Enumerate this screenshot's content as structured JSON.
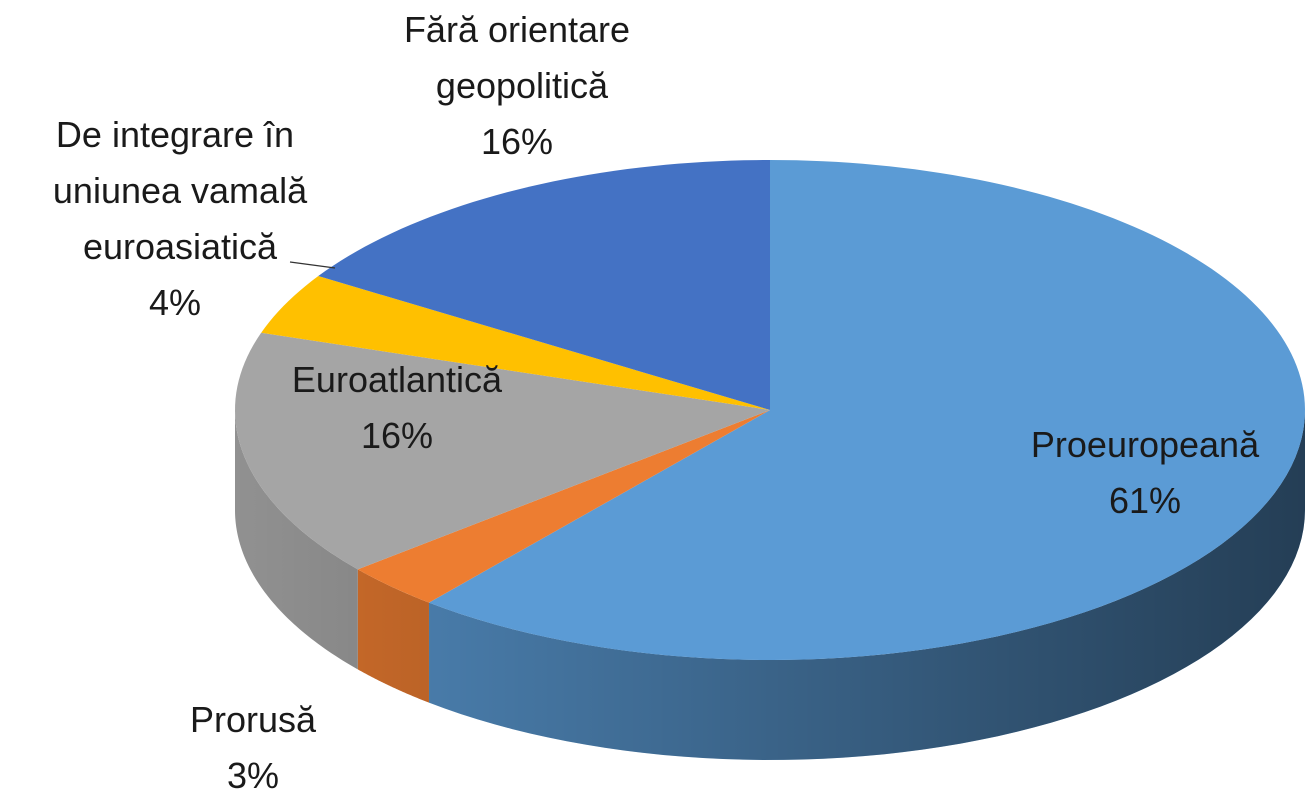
{
  "chart_data": {
    "type": "pie",
    "categories": [
      "Proeuropeană",
      "Prorusă",
      "Euroatlantică",
      "De integrare în uniunea vamală euroasiatică",
      "Fără orientare geopolitică"
    ],
    "values": [
      61,
      3,
      16,
      4,
      16
    ],
    "value_labels": [
      "61%",
      "3%",
      "16%",
      "4%",
      "16%"
    ],
    "colors": [
      "#5b9bd5",
      "#ed7d31",
      "#a5a5a5",
      "#ffc000",
      "#4472c4"
    ]
  }
}
